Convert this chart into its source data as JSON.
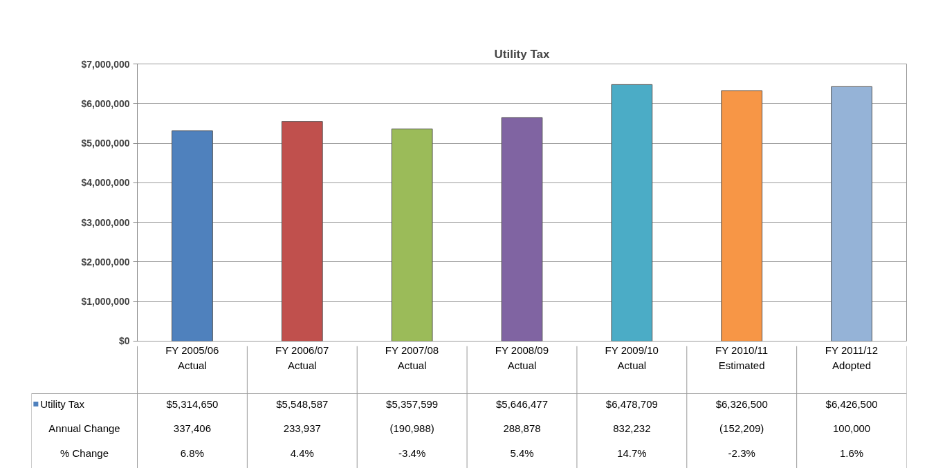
{
  "chart_data": {
    "type": "bar",
    "title": "Utility Tax",
    "categories": [
      "FY 2005/06\nActual",
      "FY 2006/07\nActual",
      "FY 2007/08\nActual",
      "FY 2008/09\nActual",
      "FY 2009/10\nActual",
      "FY 2010/11\nEstimated",
      "FY 2011/12\nAdopted"
    ],
    "series": [
      {
        "name": "Utility Tax",
        "colors": [
          "#4f81bd",
          "#c0504d",
          "#9bbb59",
          "#8064a2",
          "#4bacc6",
          "#f79646",
          "#95b3d7"
        ],
        "values": [
          5314650,
          5548587,
          5357599,
          5646477,
          6478709,
          6326500,
          6426500
        ],
        "value_labels": [
          "$5,314,650",
          "$5,548,587",
          "$5,357,599",
          "$5,646,477",
          "$6,478,709",
          "$6,326,500",
          "$6,426,500"
        ]
      }
    ],
    "ylim": [
      0,
      7000000
    ],
    "yticks": [
      {
        "value": 0,
        "label": "$0"
      },
      {
        "value": 1000000,
        "label": "$1,000,000"
      },
      {
        "value": 2000000,
        "label": "$2,000,000"
      },
      {
        "value": 3000000,
        "label": "$3,000,000"
      },
      {
        "value": 4000000,
        "label": "$4,000,000"
      },
      {
        "value": 5000000,
        "label": "$5,000,000"
      },
      {
        "value": 6000000,
        "label": "$6,000,000"
      },
      {
        "value": 7000000,
        "label": "$7,000,000"
      }
    ],
    "grid": "y",
    "annotations": [
      "Annual Change",
      "337,406",
      "233,937",
      "(190,988)",
      "288,878",
      "832,232",
      "(152,209)",
      "100,000",
      "% Change",
      "6.8%",
      "4.4%",
      "-3.4%",
      "5.4%",
      "14.7%",
      "-2.3%",
      "1.6%"
    ]
  }
}
